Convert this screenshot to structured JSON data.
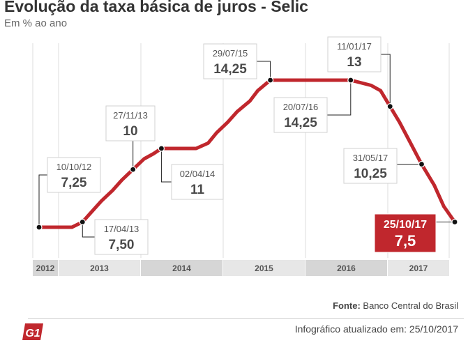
{
  "title": "Evolução da taxa básica de juros - Selic",
  "subtitle": "Em % ao ano",
  "source_label": "Fonte:",
  "source_value": "Banco Central do Brasil",
  "updated_label": "Infográfico atualizado em:",
  "updated_value": "25/10/2017",
  "logo_text": "G1",
  "colors": {
    "line": "#c0272d",
    "accent": "#c0272d",
    "band": "#e7e7e7",
    "band_dark": "#d6d6d6"
  },
  "chart_data": {
    "type": "line",
    "title": "Evolução da taxa básica de juros - Selic",
    "ylabel": "Em % ao ano",
    "x_unit": "date",
    "years": [
      "2012",
      "2013",
      "2014",
      "2015",
      "2016",
      "2017"
    ],
    "series": [
      {
        "values": [
          {
            "x": "2012-10-10",
            "y": 7.25
          },
          {
            "x": "2012-11-30",
            "y": 7.25
          },
          {
            "x": "2013-01-15",
            "y": 7.25
          },
          {
            "x": "2013-03-01",
            "y": 7.25
          },
          {
            "x": "2013-04-17",
            "y": 7.5
          },
          {
            "x": "2013-05-29",
            "y": 8.0
          },
          {
            "x": "2013-07-10",
            "y": 8.5
          },
          {
            "x": "2013-08-28",
            "y": 9.0
          },
          {
            "x": "2013-10-09",
            "y": 9.5
          },
          {
            "x": "2013-11-27",
            "y": 10.0
          },
          {
            "x": "2014-01-15",
            "y": 10.5
          },
          {
            "x": "2014-02-26",
            "y": 10.75
          },
          {
            "x": "2014-04-02",
            "y": 11.0
          },
          {
            "x": "2014-05-28",
            "y": 11.0
          },
          {
            "x": "2014-07-16",
            "y": 11.0
          },
          {
            "x": "2014-09-03",
            "y": 11.0
          },
          {
            "x": "2014-10-26",
            "y": 11.25
          },
          {
            "x": "2014-12-03",
            "y": 11.75
          },
          {
            "x": "2015-01-21",
            "y": 12.25
          },
          {
            "x": "2015-03-04",
            "y": 12.75
          },
          {
            "x": "2015-04-29",
            "y": 13.25
          },
          {
            "x": "2015-06-03",
            "y": 13.75
          },
          {
            "x": "2015-07-29",
            "y": 14.25
          },
          {
            "x": "2016-07-20",
            "y": 14.25
          },
          {
            "x": "2016-10-19",
            "y": 14.0
          },
          {
            "x": "2016-11-30",
            "y": 13.75
          },
          {
            "x": "2017-01-11",
            "y": 13.0
          },
          {
            "x": "2017-02-22",
            "y": 12.25
          },
          {
            "x": "2017-04-12",
            "y": 11.25
          },
          {
            "x": "2017-05-31",
            "y": 10.25
          },
          {
            "x": "2017-07-26",
            "y": 9.25
          },
          {
            "x": "2017-09-06",
            "y": 8.25
          },
          {
            "x": "2017-10-25",
            "y": 7.5
          }
        ]
      }
    ],
    "annotations": [
      {
        "id": "a1",
        "date": "10/10/12",
        "value": "7,25",
        "x": "2012-10-10",
        "y": 7.25,
        "side": "above"
      },
      {
        "id": "a2",
        "date": "17/04/13",
        "value": "7,50",
        "x": "2013-04-17",
        "y": 7.5,
        "side": "below"
      },
      {
        "id": "a3",
        "date": "27/11/13",
        "value": "10",
        "x": "2013-11-27",
        "y": 10.0,
        "side": "above"
      },
      {
        "id": "a4",
        "date": "02/04/14",
        "value": "11",
        "x": "2014-04-02",
        "y": 11.0,
        "side": "below"
      },
      {
        "id": "a5",
        "date": "29/07/15",
        "value": "14,25",
        "x": "2015-07-29",
        "y": 14.25,
        "side": "above"
      },
      {
        "id": "a6",
        "date": "20/07/16",
        "value": "14,25",
        "x": "2016-07-20",
        "y": 14.25,
        "side": "below"
      },
      {
        "id": "a7",
        "date": "11/01/17",
        "value": "13",
        "x": "2017-01-11",
        "y": 13.0,
        "side": "above"
      },
      {
        "id": "a8",
        "date": "31/05/17",
        "value": "10,25",
        "x": "2017-05-31",
        "y": 10.25,
        "side": "left"
      },
      {
        "id": "a9",
        "date": "25/10/17",
        "value": "7,5",
        "x": "2017-10-25",
        "y": 7.5,
        "side": "highlight"
      }
    ],
    "grid": "vertical-year-lines",
    "legend": "none"
  }
}
